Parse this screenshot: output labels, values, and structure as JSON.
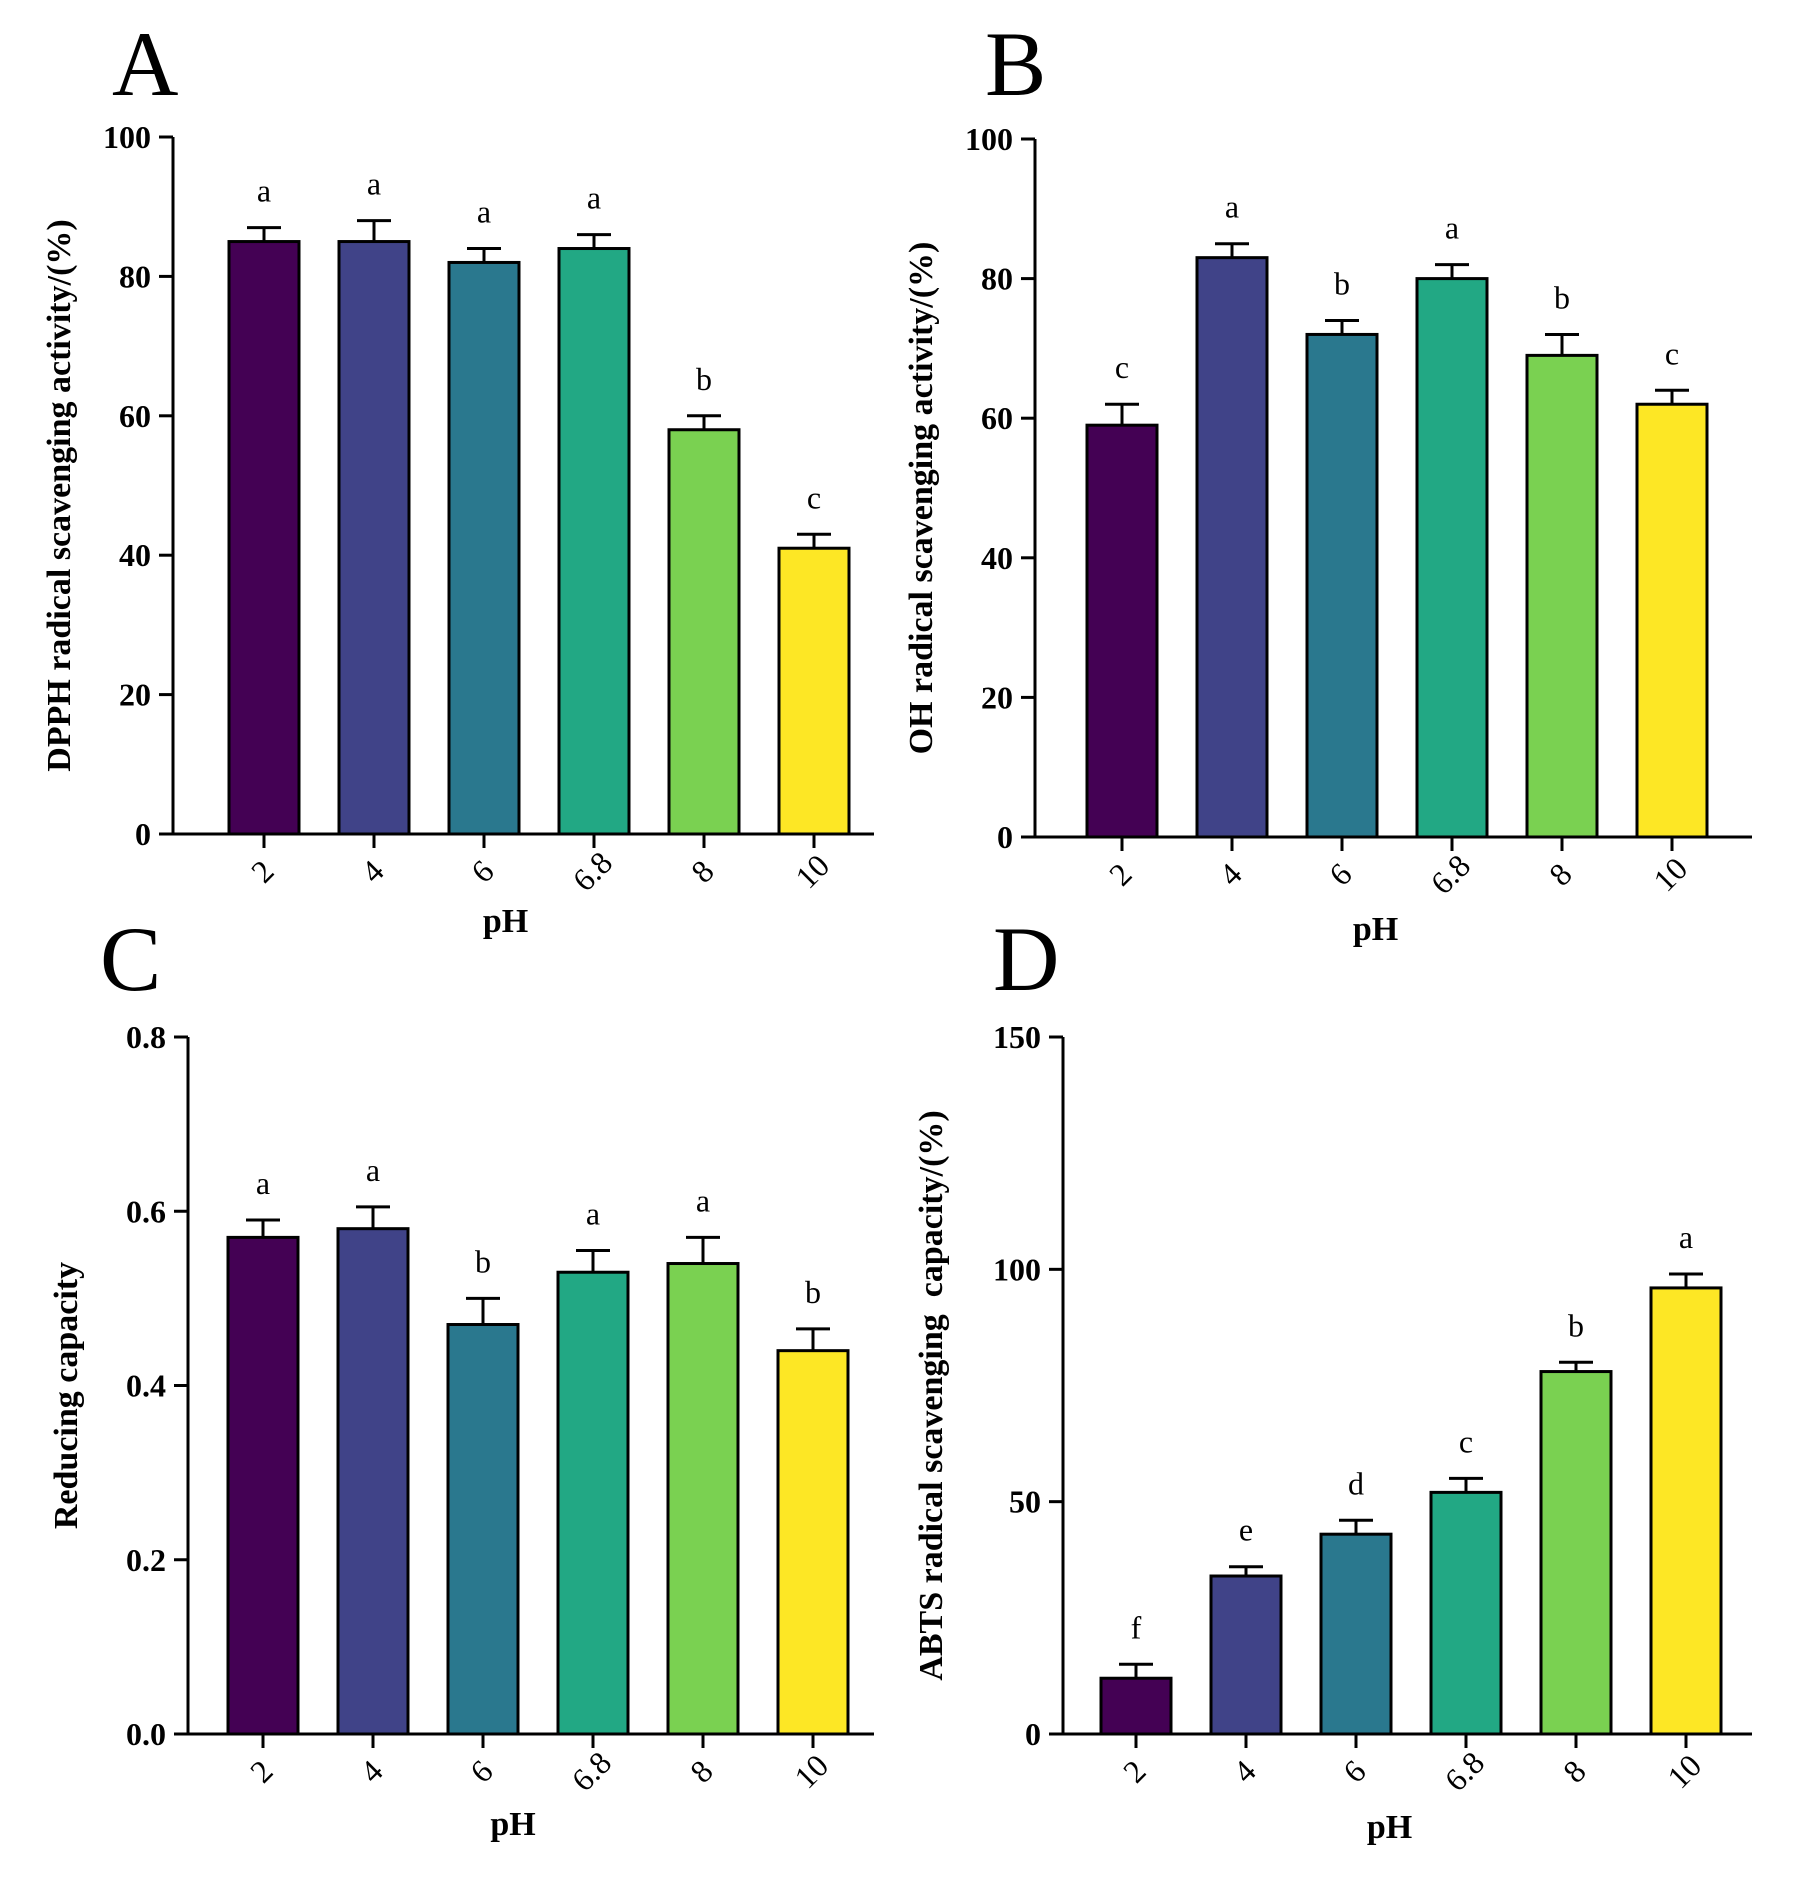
{
  "chart_data": [
    {
      "panel": "A",
      "type": "bar",
      "categories": [
        "2",
        "4",
        "6",
        "6.8",
        "8",
        "10"
      ],
      "values": [
        85,
        85,
        82,
        84,
        58,
        41
      ],
      "errors": [
        2,
        3,
        2,
        2,
        2,
        2
      ],
      "significance": [
        "a",
        "a",
        "a",
        "a",
        "b",
        "c"
      ],
      "xlabel": "pH",
      "ylabel": "DPPH radical scavenging activity/(%)",
      "ylim": [
        0,
        100
      ],
      "yticks": [
        "0",
        "20",
        "40",
        "60",
        "80",
        "100"
      ],
      "yticks_values": [
        0,
        20,
        40,
        60,
        80,
        100
      ]
    },
    {
      "panel": "B",
      "type": "bar",
      "categories": [
        "2",
        "4",
        "6",
        "6.8",
        "8",
        "10"
      ],
      "values": [
        59,
        83,
        72,
        80,
        69,
        62
      ],
      "errors": [
        3,
        2,
        2,
        2,
        3,
        2
      ],
      "significance": [
        "c",
        "a",
        "b",
        "a",
        "b",
        "c"
      ],
      "xlabel": "pH",
      "ylabel": "OH radical scavenging activity/(%)",
      "ylim": [
        0,
        100
      ],
      "yticks": [
        "0",
        "20",
        "40",
        "60",
        "80",
        "100"
      ],
      "yticks_values": [
        0,
        20,
        40,
        60,
        80,
        100
      ]
    },
    {
      "panel": "C",
      "type": "bar",
      "categories": [
        "2",
        "4",
        "6",
        "6.8",
        "8",
        "10"
      ],
      "values": [
        0.57,
        0.58,
        0.47,
        0.53,
        0.54,
        0.44
      ],
      "errors": [
        0.02,
        0.025,
        0.03,
        0.025,
        0.03,
        0.025
      ],
      "significance": [
        "a",
        "a",
        "b",
        "a",
        "a",
        "b"
      ],
      "xlabel": "pH",
      "ylabel": "Reducing capacity",
      "ylim": [
        0,
        0.8
      ],
      "yticks": [
        "0.0",
        "0.2",
        "0.4",
        "0.6",
        "0.8"
      ],
      "yticks_values": [
        0,
        0.2,
        0.4,
        0.6,
        0.8
      ]
    },
    {
      "panel": "D",
      "type": "bar",
      "categories": [
        "2",
        "4",
        "6",
        "6.8",
        "8",
        "10"
      ],
      "values": [
        12,
        34,
        43,
        52,
        78,
        96
      ],
      "errors": [
        3,
        2,
        3,
        3,
        2,
        3
      ],
      "significance": [
        "f",
        "e",
        "d",
        "c",
        "b",
        "a"
      ],
      "xlabel": "pH",
      "ylabel": "ABTS radical scavenging  capacity/(%)",
      "ylim": [
        0,
        150
      ],
      "yticks": [
        "0",
        "50",
        "100",
        "150"
      ],
      "yticks_values": [
        0,
        50,
        100,
        150
      ]
    }
  ],
  "colors": [
    "#440154",
    "#404388",
    "#2a788e",
    "#22a884",
    "#7ad151",
    "#fde725"
  ]
}
